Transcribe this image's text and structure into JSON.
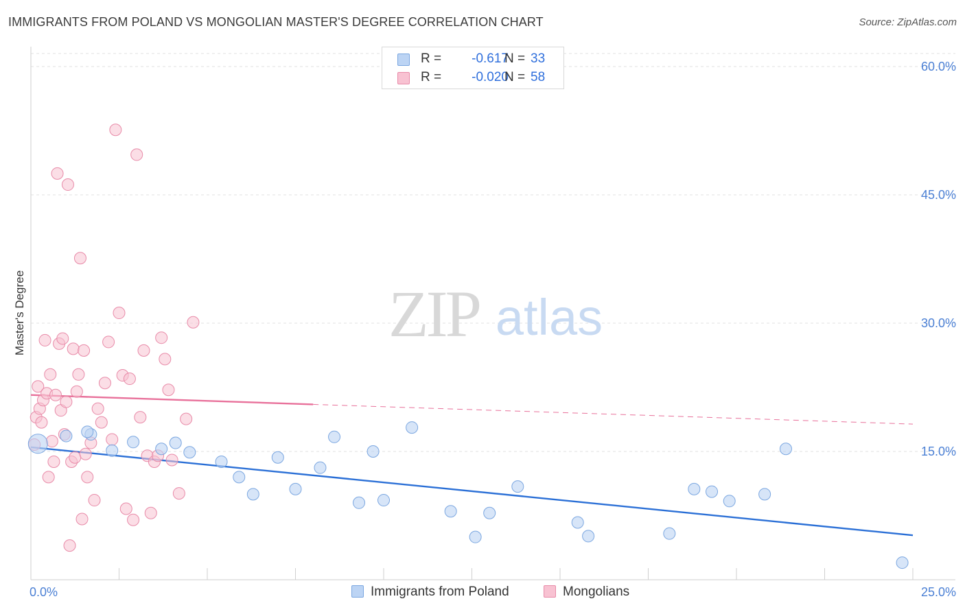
{
  "title": "IMMIGRANTS FROM POLAND VS MONGOLIAN MASTER'S DEGREE CORRELATION CHART",
  "source": "Source: ZipAtlas.com",
  "watermark": {
    "zip": "ZIP",
    "atlas": "atlas"
  },
  "legend": {
    "poland": {
      "r_label": "R =",
      "r_value": "-0.617",
      "n_label": "N =",
      "n_value": "33"
    },
    "mongolians": {
      "r_label": "R =",
      "r_value": "-0.020",
      "n_label": "N =",
      "n_value": "58"
    }
  },
  "bottom_legend": {
    "poland": "Immigrants from Poland",
    "mongolians": "Mongolians"
  },
  "colors": {
    "poland_fill": "#bcd4f4",
    "poland_stroke": "#7aa6e0",
    "poland_line": "#2a6fd6",
    "mongolian_fill": "#f8c2d2",
    "mongolian_stroke": "#e88aa8",
    "mongolian_line": "#e8709a",
    "tick_color": "#4a7fd4",
    "grid_color": "#e2e2e2"
  },
  "chart_data": {
    "type": "scatter",
    "title": "IMMIGRANTS FROM POLAND VS MONGOLIAN MASTER'S DEGREE CORRELATION CHART",
    "xlabel": "",
    "ylabel": "Master's Degree",
    "xlim": [
      0,
      25
    ],
    "ylim": [
      0,
      60
    ],
    "x_tick_labels": [
      "0.0%",
      "25.0%"
    ],
    "y_tick_labels": [
      "15.0%",
      "30.0%",
      "45.0%",
      "60.0%"
    ],
    "y_tick_values": [
      15,
      30,
      45,
      60
    ],
    "grid": true,
    "legend_position": "top-center",
    "series": [
      {
        "name": "Immigrants from Poland",
        "x": [
          0.2,
          1.0,
          1.7,
          2.3,
          2.9,
          3.7,
          4.1,
          4.5,
          5.4,
          5.9,
          6.3,
          7.0,
          7.5,
          8.2,
          8.6,
          9.3,
          9.7,
          10.0,
          10.8,
          11.9,
          12.6,
          13.0,
          13.8,
          15.5,
          15.8,
          18.1,
          18.8,
          19.3,
          19.8,
          20.8,
          21.4,
          24.7,
          1.6
        ],
        "y": [
          15.9,
          16.8,
          17.0,
          15.1,
          16.1,
          15.3,
          16.0,
          14.9,
          13.8,
          12.0,
          10.0,
          14.3,
          10.6,
          13.1,
          16.7,
          9.0,
          15.0,
          9.3,
          17.8,
          8.0,
          5.0,
          7.8,
          10.9,
          6.7,
          5.1,
          5.4,
          10.6,
          10.3,
          9.2,
          10.0,
          15.3,
          2.0,
          17.3
        ]
      },
      {
        "name": "Mongolians",
        "x": [
          0.1,
          0.15,
          0.2,
          0.25,
          0.3,
          0.35,
          0.4,
          0.45,
          0.5,
          0.55,
          0.6,
          0.65,
          0.7,
          0.75,
          0.8,
          0.85,
          0.9,
          0.95,
          1.0,
          1.05,
          1.1,
          1.15,
          1.2,
          1.25,
          1.3,
          1.35,
          1.4,
          1.45,
          1.5,
          1.55,
          1.6,
          1.7,
          1.8,
          1.9,
          2.0,
          2.1,
          2.2,
          2.3,
          2.4,
          2.5,
          2.6,
          2.7,
          2.8,
          2.9,
          3.0,
          3.1,
          3.2,
          3.3,
          3.4,
          3.5,
          3.6,
          3.7,
          3.8,
          3.9,
          4.0,
          4.2,
          4.4,
          4.6
        ],
        "y": [
          15.8,
          19.0,
          22.6,
          20.0,
          18.4,
          21.0,
          28.0,
          21.8,
          12.0,
          24.0,
          16.2,
          13.8,
          21.6,
          47.5,
          27.6,
          19.8,
          28.2,
          17.0,
          20.8,
          46.2,
          4.0,
          13.8,
          27.0,
          14.3,
          22.0,
          24.0,
          37.6,
          7.1,
          26.8,
          14.7,
          12.0,
          16.0,
          9.3,
          20.0,
          18.4,
          23.0,
          27.8,
          16.4,
          52.6,
          31.2,
          23.9,
          8.3,
          23.5,
          7.0,
          49.7,
          19.0,
          26.8,
          14.5,
          7.8,
          13.8,
          14.5,
          28.3,
          25.8,
          22.2,
          14.0,
          10.1,
          18.8,
          30.1
        ]
      }
    ],
    "trendlines": [
      {
        "name": "Immigrants from Poland",
        "x": [
          0,
          25
        ],
        "y": [
          15.5,
          5.2
        ],
        "style": "solid"
      },
      {
        "name": "Mongolians",
        "x": [
          0,
          8
        ],
        "y": [
          21.6,
          20.5
        ],
        "style": "solid"
      },
      {
        "name": "Mongolians",
        "x": [
          8,
          25
        ],
        "y": [
          20.5,
          18.2
        ],
        "style": "dashed"
      }
    ]
  }
}
